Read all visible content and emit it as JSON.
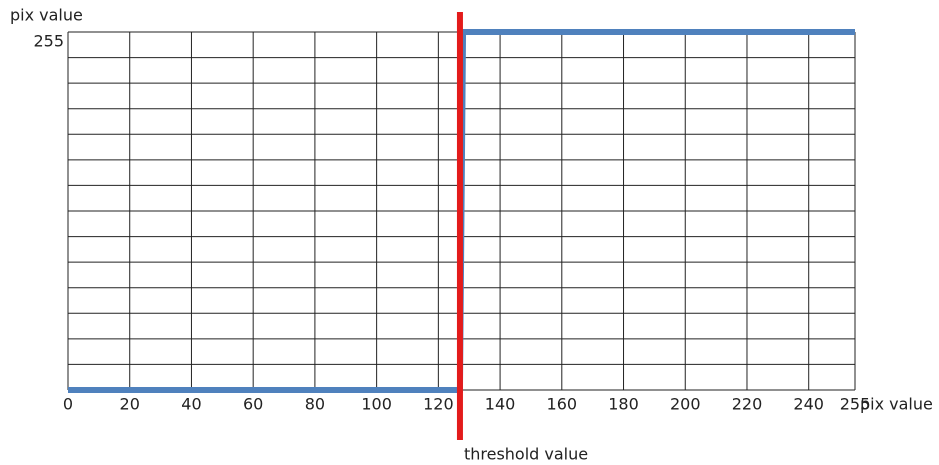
{
  "chart_data": {
    "type": "line",
    "y_label": "pix value",
    "x_label": "pix value",
    "x": [
      0,
      127,
      128,
      255
    ],
    "values": [
      0,
      0,
      255,
      255
    ],
    "color": "#4f81bd",
    "xlim": [
      0,
      255
    ],
    "ylim": [
      0,
      255
    ],
    "xticks": [
      0,
      20,
      40,
      60,
      80,
      100,
      120,
      140,
      160,
      180,
      200,
      220,
      240,
      255
    ],
    "yticks": [
      255
    ],
    "threshold": {
      "value": 127,
      "label": "threshold value",
      "color": "#e31b1b"
    },
    "grid": true
  }
}
